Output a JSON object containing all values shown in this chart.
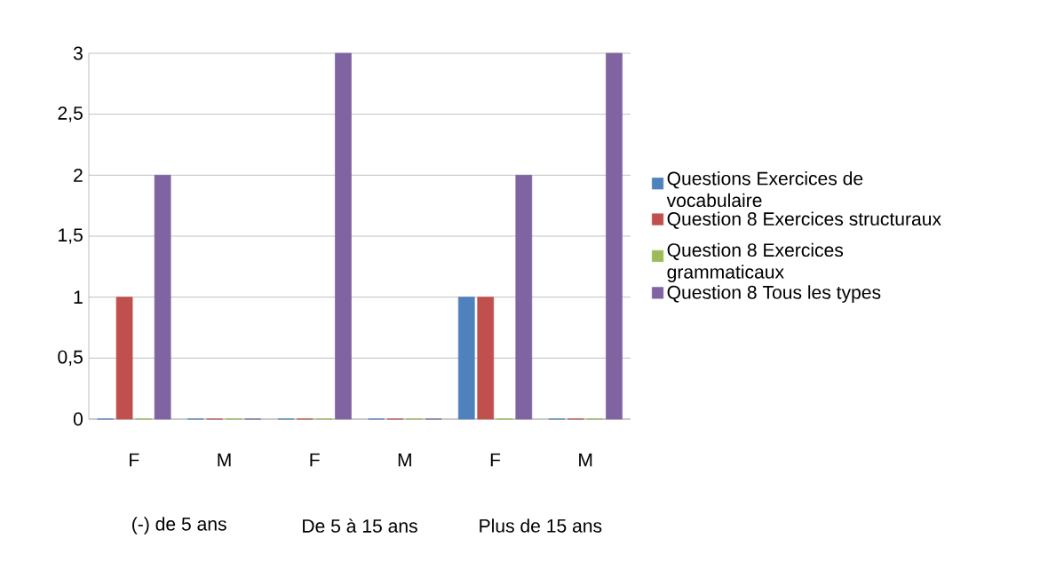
{
  "chart_data": {
    "type": "bar",
    "categories": [
      "F",
      "M",
      "F",
      "M",
      "F",
      "M"
    ],
    "annotations": [
      "(-) de 5 ans",
      "De 5 à 15 ans",
      "Plus de 15 ans"
    ],
    "series": [
      {
        "name": "Questions Exercices de vocabulaire",
        "color": "#4f81bd",
        "values": [
          0,
          0,
          0,
          0,
          1,
          0
        ]
      },
      {
        "name": "Question 8 Exercices structuraux",
        "color": "#c0504d",
        "values": [
          1,
          0,
          0,
          0,
          1,
          0
        ]
      },
      {
        "name": "Question 8 Exercices grammaticaux",
        "color": "#9bbb59",
        "values": [
          0,
          0,
          0,
          0,
          0,
          0
        ]
      },
      {
        "name": "Question 8 Tous les types",
        "color": "#8064a2",
        "values": [
          2,
          0,
          3,
          0,
          2,
          3
        ]
      }
    ],
    "ylim": [
      0,
      3
    ],
    "yticks": [
      0,
      {
        "value": 0.5,
        "label": "0,5"
      },
      1,
      {
        "value": 1.5,
        "label": "1,5"
      },
      2,
      {
        "value": 2.5,
        "label": "2,5"
      },
      3
    ],
    "grid": "y",
    "legend": "right"
  }
}
